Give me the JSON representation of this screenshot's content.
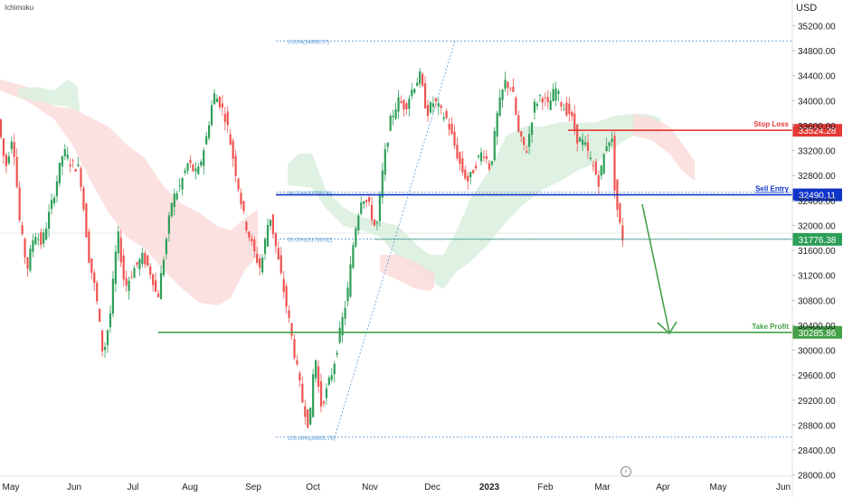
{
  "indicator": "Ichimoku",
  "currency": "USD",
  "gear_icon": "lightning-icon",
  "colors": {
    "up": "#2e9e59",
    "down": "#ef5350",
    "cloud_bull": "#d9efdd",
    "cloud_bear": "#fbdcdc",
    "stop_loss": "#e53935",
    "sell_entry": "#1035c9",
    "take_profit": "#43a047",
    "fib": "#5b9bd5"
  },
  "chart_data": {
    "type": "candlestick",
    "y_axis": {
      "ticks": [
        "35200.00",
        "34800.00",
        "34400.00",
        "34000.00",
        "33600.00",
        "33200.00",
        "32800.00",
        "32400.00",
        "32000.00",
        "31600.00",
        "31200.00",
        "30800.00",
        "30400.00",
        "30000.00",
        "29600.00",
        "29200.00",
        "28800.00",
        "28400.00",
        "28000.00"
      ],
      "ylim": [
        27980,
        35540
      ]
    },
    "x_axis": {
      "labels": [
        {
          "text": "May",
          "bold": false
        },
        {
          "text": "Jun",
          "bold": false
        },
        {
          "text": "Jul",
          "bold": false
        },
        {
          "text": "Aug",
          "bold": false
        },
        {
          "text": "Sep",
          "bold": false
        },
        {
          "text": "Oct",
          "bold": false
        },
        {
          "text": "Nov",
          "bold": false
        },
        {
          "text": "Dec",
          "bold": false
        },
        {
          "text": "2023",
          "bold": true
        },
        {
          "text": "Feb",
          "bold": false
        },
        {
          "text": "Mar",
          "bold": false
        },
        {
          "text": "Apr",
          "bold": false
        },
        {
          "text": "May",
          "bold": false
        },
        {
          "text": "Jun",
          "bold": false
        }
      ]
    },
    "levels": [
      {
        "name": "Stop Loss",
        "value": 33524.28,
        "price_label": "33524.28",
        "color": "#e53935"
      },
      {
        "name": "Sell Entry",
        "value": 32490.11,
        "price_label": "32490.11",
        "color": "#1035c9"
      },
      {
        "name": "",
        "value": 31776.38,
        "price_label": "31776.38",
        "color": "#2e9e59"
      },
      {
        "name": "Take Profit",
        "value": 30285.86,
        "price_label": "30285.86",
        "color": "#43a047"
      }
    ],
    "fibonacci": [
      {
        "label": "0.00%(34956.07)",
        "value": 34956.07
      },
      {
        "label": "38.20%(32530.26)",
        "value": 32530.26
      },
      {
        "label": "50.00%(31780.82)",
        "value": 31780.82
      },
      {
        "label": "100.00%(28605.76)",
        "value": 28605.76
      }
    ],
    "path": [
      [
        0,
        33700
      ],
      [
        8,
        32900
      ],
      [
        16,
        33500
      ],
      [
        24,
        32000
      ],
      [
        32,
        31300
      ],
      [
        40,
        31900
      ],
      [
        48,
        31700
      ],
      [
        60,
        32400
      ],
      [
        72,
        33200
      ],
      [
        80,
        33000
      ],
      [
        90,
        32900
      ],
      [
        100,
        31500
      ],
      [
        108,
        30900
      ],
      [
        116,
        29900
      ],
      [
        124,
        30600
      ],
      [
        132,
        31900
      ],
      [
        140,
        31000
      ],
      [
        150,
        31300
      ],
      [
        160,
        31500
      ],
      [
        170,
        31200
      ],
      [
        176,
        30800
      ],
      [
        184,
        31600
      ],
      [
        192,
        32400
      ],
      [
        200,
        32600
      ],
      [
        210,
        33000
      ],
      [
        220,
        32800
      ],
      [
        230,
        33400
      ],
      [
        238,
        34100
      ],
      [
        244,
        34000
      ],
      [
        252,
        33700
      ],
      [
        262,
        32900
      ],
      [
        272,
        32100
      ],
      [
        282,
        31600
      ],
      [
        290,
        31300
      ],
      [
        300,
        32200
      ],
      [
        310,
        31400
      ],
      [
        320,
        30600
      ],
      [
        328,
        29900
      ],
      [
        336,
        29200
      ],
      [
        344,
        28750
      ],
      [
        350,
        30000
      ],
      [
        356,
        29100
      ],
      [
        362,
        29300
      ],
      [
        370,
        29700
      ],
      [
        378,
        30300
      ],
      [
        386,
        30900
      ],
      [
        394,
        31900
      ],
      [
        402,
        32500
      ],
      [
        410,
        32300
      ],
      [
        418,
        31900
      ],
      [
        426,
        33000
      ],
      [
        434,
        33700
      ],
      [
        442,
        34000
      ],
      [
        450,
        33900
      ],
      [
        458,
        34200
      ],
      [
        466,
        34400
      ],
      [
        474,
        33800
      ],
      [
        482,
        34000
      ],
      [
        490,
        33800
      ],
      [
        496,
        33700
      ],
      [
        504,
        33300
      ],
      [
        512,
        32900
      ],
      [
        520,
        32700
      ],
      [
        528,
        33000
      ],
      [
        536,
        33200
      ],
      [
        544,
        32900
      ],
      [
        552,
        33800
      ],
      [
        560,
        34300
      ],
      [
        568,
        34200
      ],
      [
        576,
        33400
      ],
      [
        584,
        33200
      ],
      [
        592,
        33900
      ],
      [
        600,
        34100
      ],
      [
        608,
        33900
      ],
      [
        616,
        34200
      ],
      [
        624,
        33900
      ],
      [
        632,
        33800
      ],
      [
        640,
        33400
      ],
      [
        648,
        33300
      ],
      [
        656,
        33000
      ],
      [
        664,
        32700
      ],
      [
        672,
        33300
      ],
      [
        678,
        33450
      ],
      [
        682,
        32500
      ],
      [
        686,
        32100
      ],
      [
        690,
        31800
      ]
    ]
  }
}
